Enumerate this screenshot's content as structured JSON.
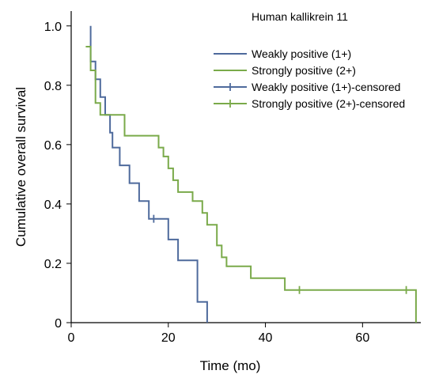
{
  "chart_data": {
    "type": "line",
    "subtype": "kaplan-meier",
    "xlabel": "Time (mo)",
    "ylabel": "Cumulative overall survival",
    "xlim": [
      0,
      72
    ],
    "ylim": [
      0,
      1.05
    ],
    "xticks": [
      0,
      20,
      40,
      60
    ],
    "yticks": [
      0,
      0.2,
      0.4,
      0.6,
      0.8,
      1.0
    ],
    "ytick_labels": [
      "0",
      "0.2",
      "0.4",
      "0.6",
      "0.8",
      "1.0"
    ],
    "legend": {
      "title": "Human kallikrein 11",
      "placement": "top-right",
      "entries": [
        {
          "label": "Weakly positive (1+)",
          "kind": "line",
          "color": "#4e6a9c"
        },
        {
          "label": "Strongly positive (2+)",
          "kind": "line",
          "color": "#7aaa4a"
        },
        {
          "label": "Weakly positive (1+)-censored",
          "kind": "censor",
          "color": "#4e6a9c"
        },
        {
          "label": "Strongly positive (2+)-censored",
          "kind": "censor",
          "color": "#7aaa4a"
        }
      ]
    },
    "series": [
      {
        "name": "Weakly positive (1+)",
        "color": "#4e6a9c",
        "start_x": 4,
        "steps": [
          {
            "x": 4,
            "y": 1.0
          },
          {
            "x": 4,
            "y": 0.88
          },
          {
            "x": 5,
            "y": 0.88
          },
          {
            "x": 5,
            "y": 0.82
          },
          {
            "x": 6,
            "y": 0.82
          },
          {
            "x": 6,
            "y": 0.76
          },
          {
            "x": 7,
            "y": 0.76
          },
          {
            "x": 7,
            "y": 0.7
          },
          {
            "x": 8,
            "y": 0.7
          },
          {
            "x": 8,
            "y": 0.64
          },
          {
            "x": 8.5,
            "y": 0.64
          },
          {
            "x": 8.5,
            "y": 0.59
          },
          {
            "x": 10,
            "y": 0.59
          },
          {
            "x": 10,
            "y": 0.53
          },
          {
            "x": 12,
            "y": 0.53
          },
          {
            "x": 12,
            "y": 0.47
          },
          {
            "x": 14,
            "y": 0.47
          },
          {
            "x": 14,
            "y": 0.41
          },
          {
            "x": 16,
            "y": 0.41
          },
          {
            "x": 16,
            "y": 0.35
          },
          {
            "x": 20,
            "y": 0.35
          },
          {
            "x": 20,
            "y": 0.28
          },
          {
            "x": 22,
            "y": 0.28
          },
          {
            "x": 22,
            "y": 0.21
          },
          {
            "x": 26,
            "y": 0.21
          },
          {
            "x": 26,
            "y": 0.07
          },
          {
            "x": 28,
            "y": 0.07
          },
          {
            "x": 28,
            "y": 0.0
          }
        ],
        "censored": [
          {
            "x": 17,
            "y": 0.35
          }
        ]
      },
      {
        "name": "Strongly positive (2+)",
        "color": "#7aaa4a",
        "start_x": 3,
        "steps": [
          {
            "x": 3,
            "y": 0.93
          },
          {
            "x": 4,
            "y": 0.93
          },
          {
            "x": 4,
            "y": 0.85
          },
          {
            "x": 5,
            "y": 0.85
          },
          {
            "x": 5,
            "y": 0.74
          },
          {
            "x": 6,
            "y": 0.74
          },
          {
            "x": 6,
            "y": 0.7
          },
          {
            "x": 11,
            "y": 0.7
          },
          {
            "x": 11,
            "y": 0.63
          },
          {
            "x": 18,
            "y": 0.63
          },
          {
            "x": 18,
            "y": 0.59
          },
          {
            "x": 19,
            "y": 0.59
          },
          {
            "x": 19,
            "y": 0.56
          },
          {
            "x": 20,
            "y": 0.56
          },
          {
            "x": 20,
            "y": 0.52
          },
          {
            "x": 21,
            "y": 0.52
          },
          {
            "x": 21,
            "y": 0.48
          },
          {
            "x": 22,
            "y": 0.48
          },
          {
            "x": 22,
            "y": 0.44
          },
          {
            "x": 25,
            "y": 0.44
          },
          {
            "x": 25,
            "y": 0.41
          },
          {
            "x": 27,
            "y": 0.41
          },
          {
            "x": 27,
            "y": 0.37
          },
          {
            "x": 28,
            "y": 0.37
          },
          {
            "x": 28,
            "y": 0.33
          },
          {
            "x": 30,
            "y": 0.33
          },
          {
            "x": 30,
            "y": 0.26
          },
          {
            "x": 31,
            "y": 0.26
          },
          {
            "x": 31,
            "y": 0.22
          },
          {
            "x": 32,
            "y": 0.22
          },
          {
            "x": 32,
            "y": 0.19
          },
          {
            "x": 37,
            "y": 0.19
          },
          {
            "x": 37,
            "y": 0.15
          },
          {
            "x": 44,
            "y": 0.15
          },
          {
            "x": 44,
            "y": 0.11
          },
          {
            "x": 71,
            "y": 0.11
          },
          {
            "x": 71,
            "y": 0.0
          }
        ],
        "censored": [
          {
            "x": 47,
            "y": 0.11
          },
          {
            "x": 69,
            "y": 0.11
          }
        ]
      }
    ]
  }
}
